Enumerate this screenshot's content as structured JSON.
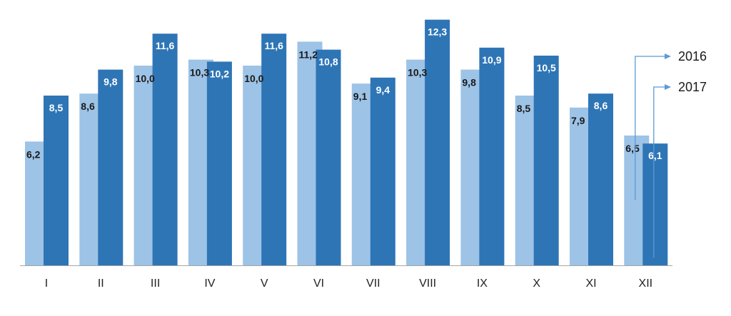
{
  "chart_data": {
    "type": "bar",
    "categories": [
      "I",
      "II",
      "III",
      "IV",
      "V",
      "VI",
      "VII",
      "VIII",
      "IX",
      "X",
      "XI",
      "XII"
    ],
    "series": [
      {
        "name": "2016",
        "values": [
          6.2,
          8.6,
          10.0,
          10.3,
          10.0,
          11.2,
          9.1,
          10.3,
          9.8,
          8.5,
          7.9,
          6.5
        ],
        "labels": [
          "6,2",
          "8,6",
          "10,0",
          "10,3",
          "10,0",
          "11,2",
          "9,1",
          "10,3",
          "9,8",
          "8,5",
          "7,9",
          "6,5"
        ],
        "color": "#9DC3E6",
        "label_color": "#1a1a1a"
      },
      {
        "name": "2017",
        "values": [
          8.5,
          9.8,
          11.6,
          10.2,
          11.6,
          10.8,
          9.4,
          12.3,
          10.9,
          10.5,
          8.6,
          6.1
        ],
        "labels": [
          "8,5",
          "9,8",
          "11,6",
          "10,2",
          "11,6",
          "10,8",
          "9,4",
          "12,3",
          "10,9",
          "10,5",
          "8,6",
          "6,1"
        ],
        "color": "#2E75B6",
        "label_color": "#ffffff"
      }
    ],
    "ylim": [
      0,
      12.3
    ],
    "axis_line_color": "#A6A6A6",
    "legend_placement": "right, arrow callouts pointing from the last bars",
    "legend_arrow_color": "#5B9BD5",
    "grid": false
  }
}
